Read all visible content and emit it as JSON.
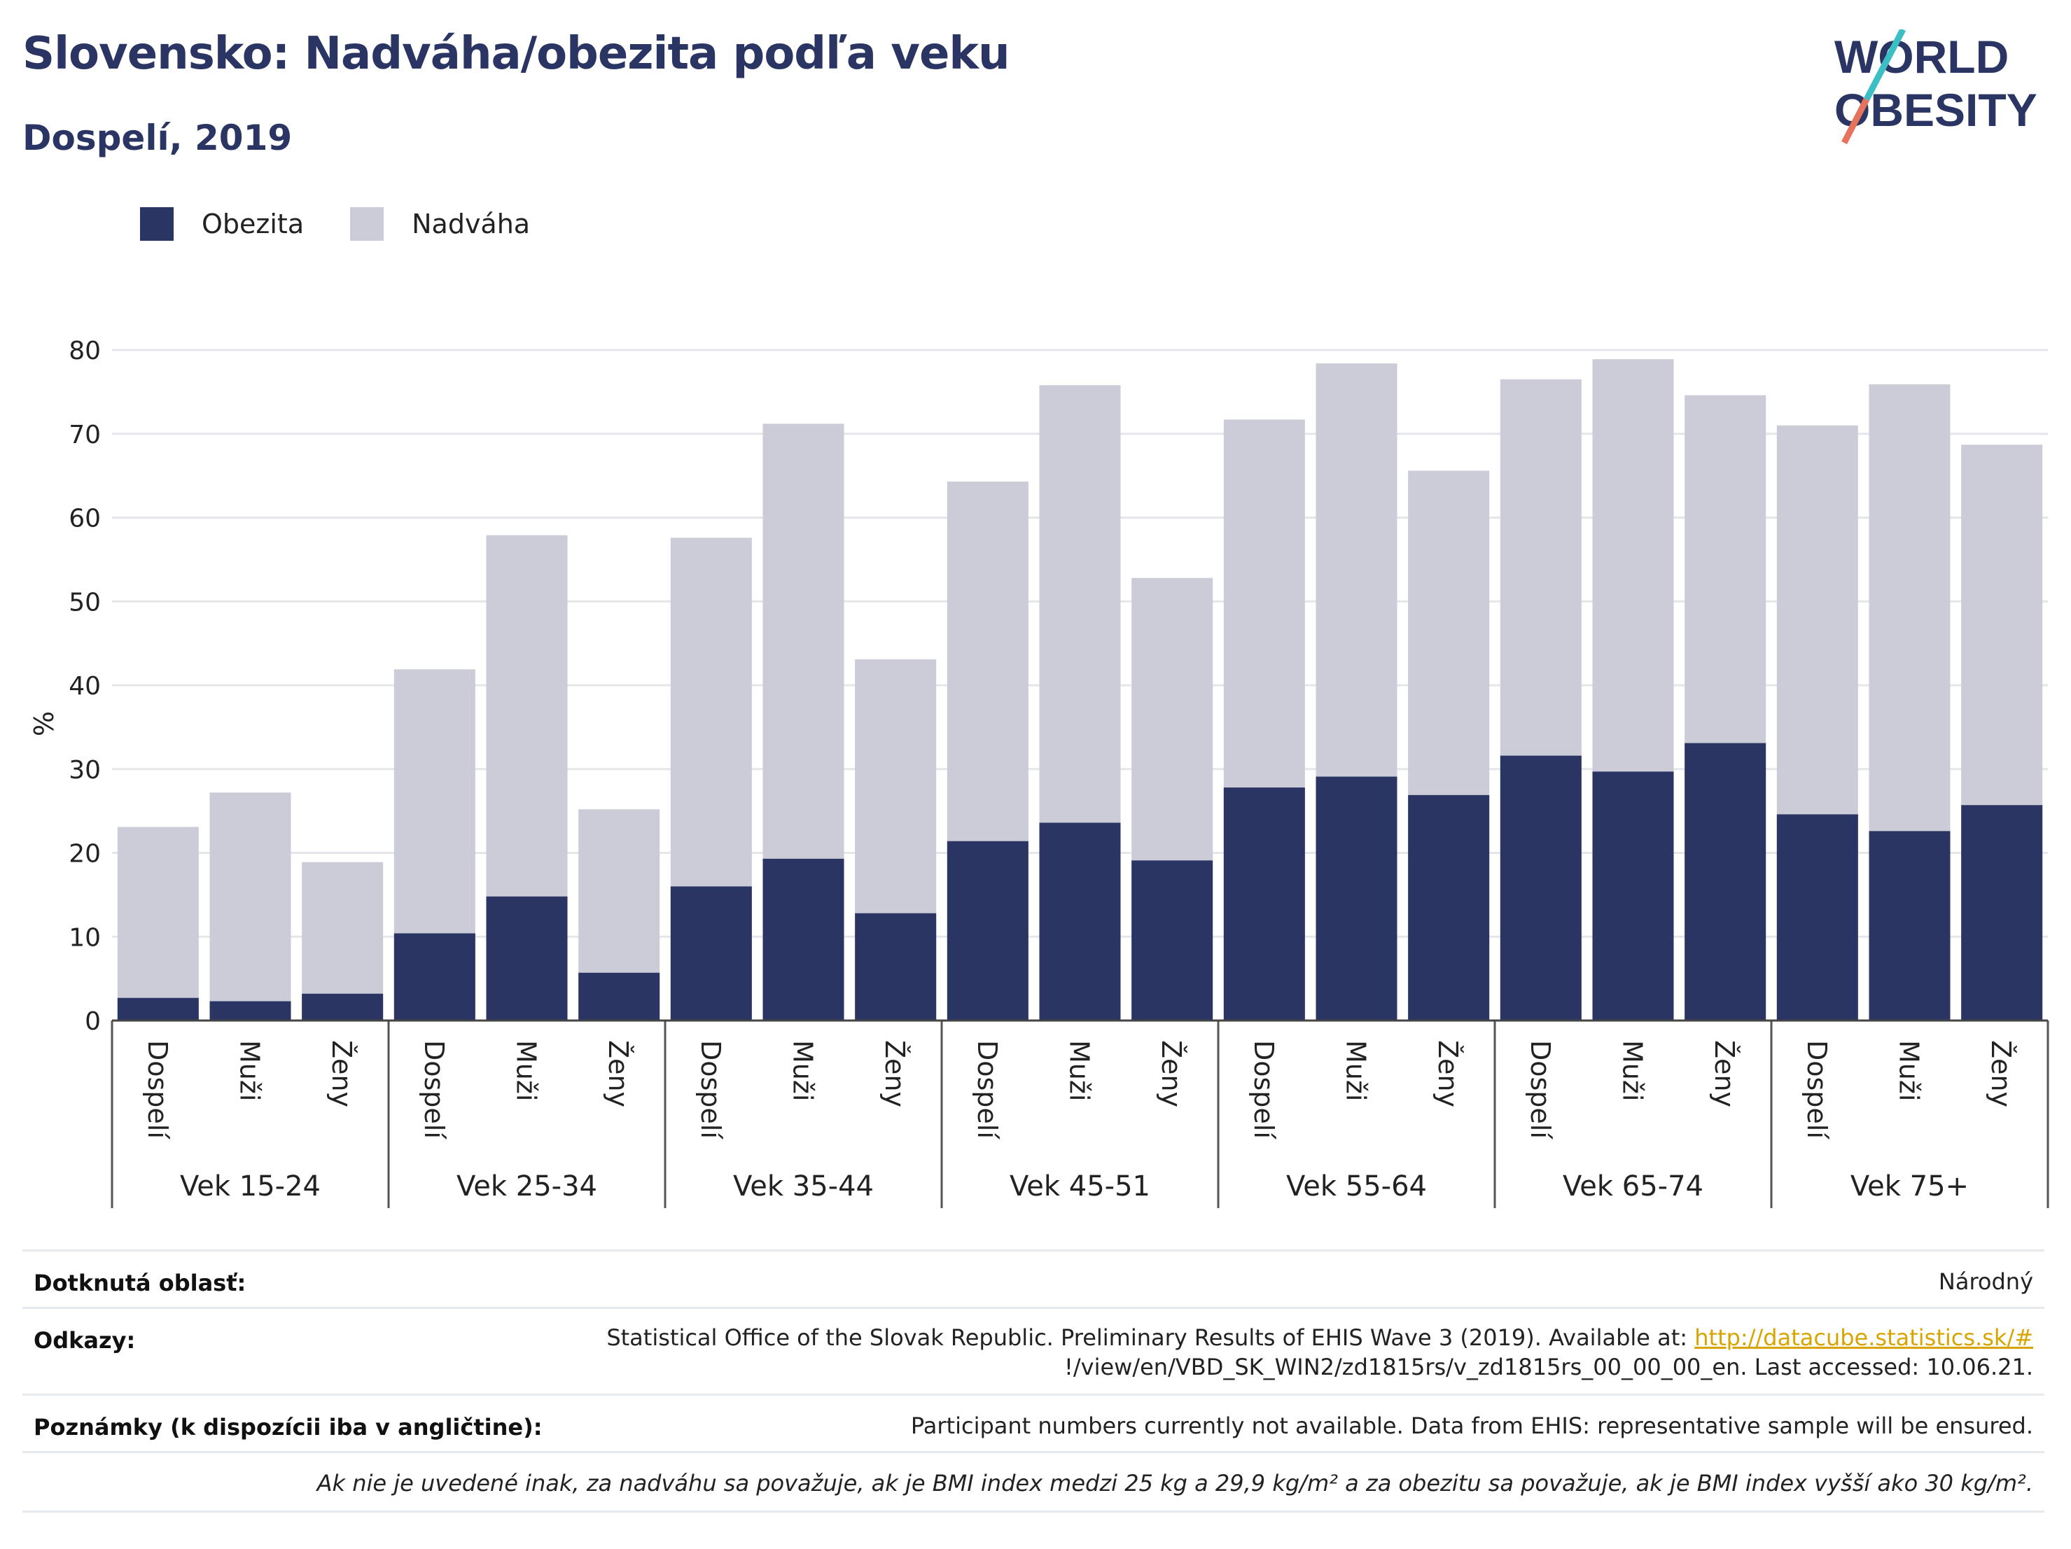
{
  "title": "Slovensko: Nadváha/obezita podľa veku",
  "subtitle": "Dospelí, 2019",
  "logo": {
    "line1": "WORLD",
    "line2": "OBESITY"
  },
  "legend": {
    "obesity": "Obezita",
    "overweight": "Nadváha"
  },
  "colors": {
    "obesity": "#2a3563",
    "overweight": "#cbccd8",
    "accent_teal": "#3bbfc4",
    "accent_coral": "#e8735c",
    "link": "#d8a500"
  },
  "chart_data": {
    "type": "bar",
    "stacked": true,
    "ylabel": "%",
    "ylim": [
      0,
      80
    ],
    "yticks": [
      0,
      10,
      20,
      30,
      40,
      50,
      60,
      70,
      80
    ],
    "grid": true,
    "legend_position": "top-left",
    "groups": [
      {
        "name": "Vek 15-24",
        "bars": [
          {
            "label": "Dospelí",
            "obezita": 2.7,
            "nadvaha": 23.1
          },
          {
            "label": "Muži",
            "obezita": 2.3,
            "nadvaha": 27.2
          },
          {
            "label": "Ženy",
            "obezita": 3.2,
            "nadvaha": 18.9
          }
        ]
      },
      {
        "name": "Vek 25-34",
        "bars": [
          {
            "label": "Dospelí",
            "obezita": 10.4,
            "nadvaha": 41.9
          },
          {
            "label": "Muži",
            "obezita": 14.8,
            "nadvaha": 57.9
          },
          {
            "label": "Ženy",
            "obezita": 5.7,
            "nadvaha": 25.2
          }
        ]
      },
      {
        "name": "Vek 35-44",
        "bars": [
          {
            "label": "Dospelí",
            "obezita": 16.0,
            "nadvaha": 57.6
          },
          {
            "label": "Muži",
            "obezita": 19.3,
            "nadvaha": 71.2
          },
          {
            "label": "Ženy",
            "obezita": 12.8,
            "nadvaha": 43.1
          }
        ]
      },
      {
        "name": "Vek 45-51",
        "bars": [
          {
            "label": "Dospelí",
            "obezita": 21.4,
            "nadvaha": 64.3
          },
          {
            "label": "Muži",
            "obezita": 23.6,
            "nadvaha": 75.8
          },
          {
            "label": "Ženy",
            "obezita": 19.1,
            "nadvaha": 52.8
          }
        ]
      },
      {
        "name": "Vek 55-64",
        "bars": [
          {
            "label": "Dospelí",
            "obezita": 27.8,
            "nadvaha": 71.7
          },
          {
            "label": "Muži",
            "obezita": 29.1,
            "nadvaha": 78.4
          },
          {
            "label": "Ženy",
            "obezita": 26.9,
            "nadvaha": 65.6
          }
        ]
      },
      {
        "name": "Vek 65-74",
        "bars": [
          {
            "label": "Dospelí",
            "obezita": 31.6,
            "nadvaha": 76.5
          },
          {
            "label": "Muži",
            "obezita": 29.7,
            "nadvaha": 78.9
          },
          {
            "label": "Ženy",
            "obezita": 33.1,
            "nadvaha": 74.6
          }
        ]
      },
      {
        "name": "Vek 75+",
        "bars": [
          {
            "label": "Dospelí",
            "obezita": 24.6,
            "nadvaha": 71.0
          },
          {
            "label": "Muži",
            "obezita": 22.6,
            "nadvaha": 75.9
          },
          {
            "label": "Ženy",
            "obezita": 25.7,
            "nadvaha": 68.7
          }
        ]
      }
    ]
  },
  "info": {
    "area_label": "Dotknutá oblasť:",
    "area_value": "Národný",
    "refs_label": "Odkazy:",
    "refs_text1": "Statistical Office of the Slovak Republic. Preliminary Results of EHIS Wave 3 (2019). Available at: ",
    "refs_link": "http://datacube.statistics.sk/#",
    "refs_text2": "!/view/en/VBD_SK_WIN2/zd1815rs/v_zd1815rs_00_00_00_en. Last accessed: 10.06.21.",
    "notes_label": "Poznámky (k dispozícii iba v angličtine):",
    "notes_value": "Participant numbers currently not available. Data from EHIS: representative sample will be ensured.",
    "definition": "Ak nie je uvedené inak, za nadváhu sa považuje, ak je BMI index medzi 25 kg a 29,9 kg/m² a za obezitu sa považuje, ak je BMI index vyšší ako 30 kg/m²."
  }
}
